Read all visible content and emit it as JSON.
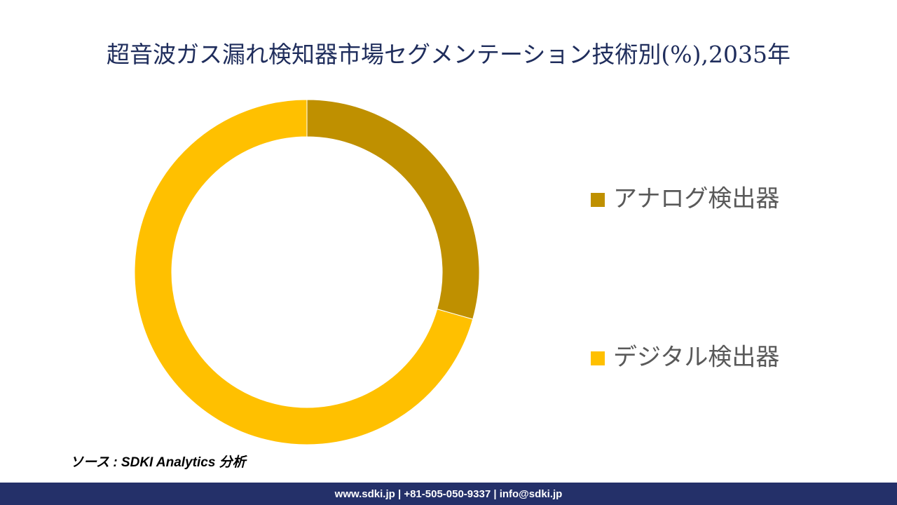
{
  "chart_data": {
    "type": "donut",
    "title": "超音波ガス漏れ検知器市場セグメンテーション技術別(%),2035年",
    "categories": [
      "アナログ検出器",
      "デジタル検出器"
    ],
    "values": [
      29.4,
      70.6
    ],
    "colors": [
      "#bf9000",
      "#ffc000"
    ],
    "legend": "right"
  },
  "source": "ソース : SDKI Analytics 分析",
  "footer": "www.sdki.jp | +81-505-050-9337 | info@sdki.jp"
}
